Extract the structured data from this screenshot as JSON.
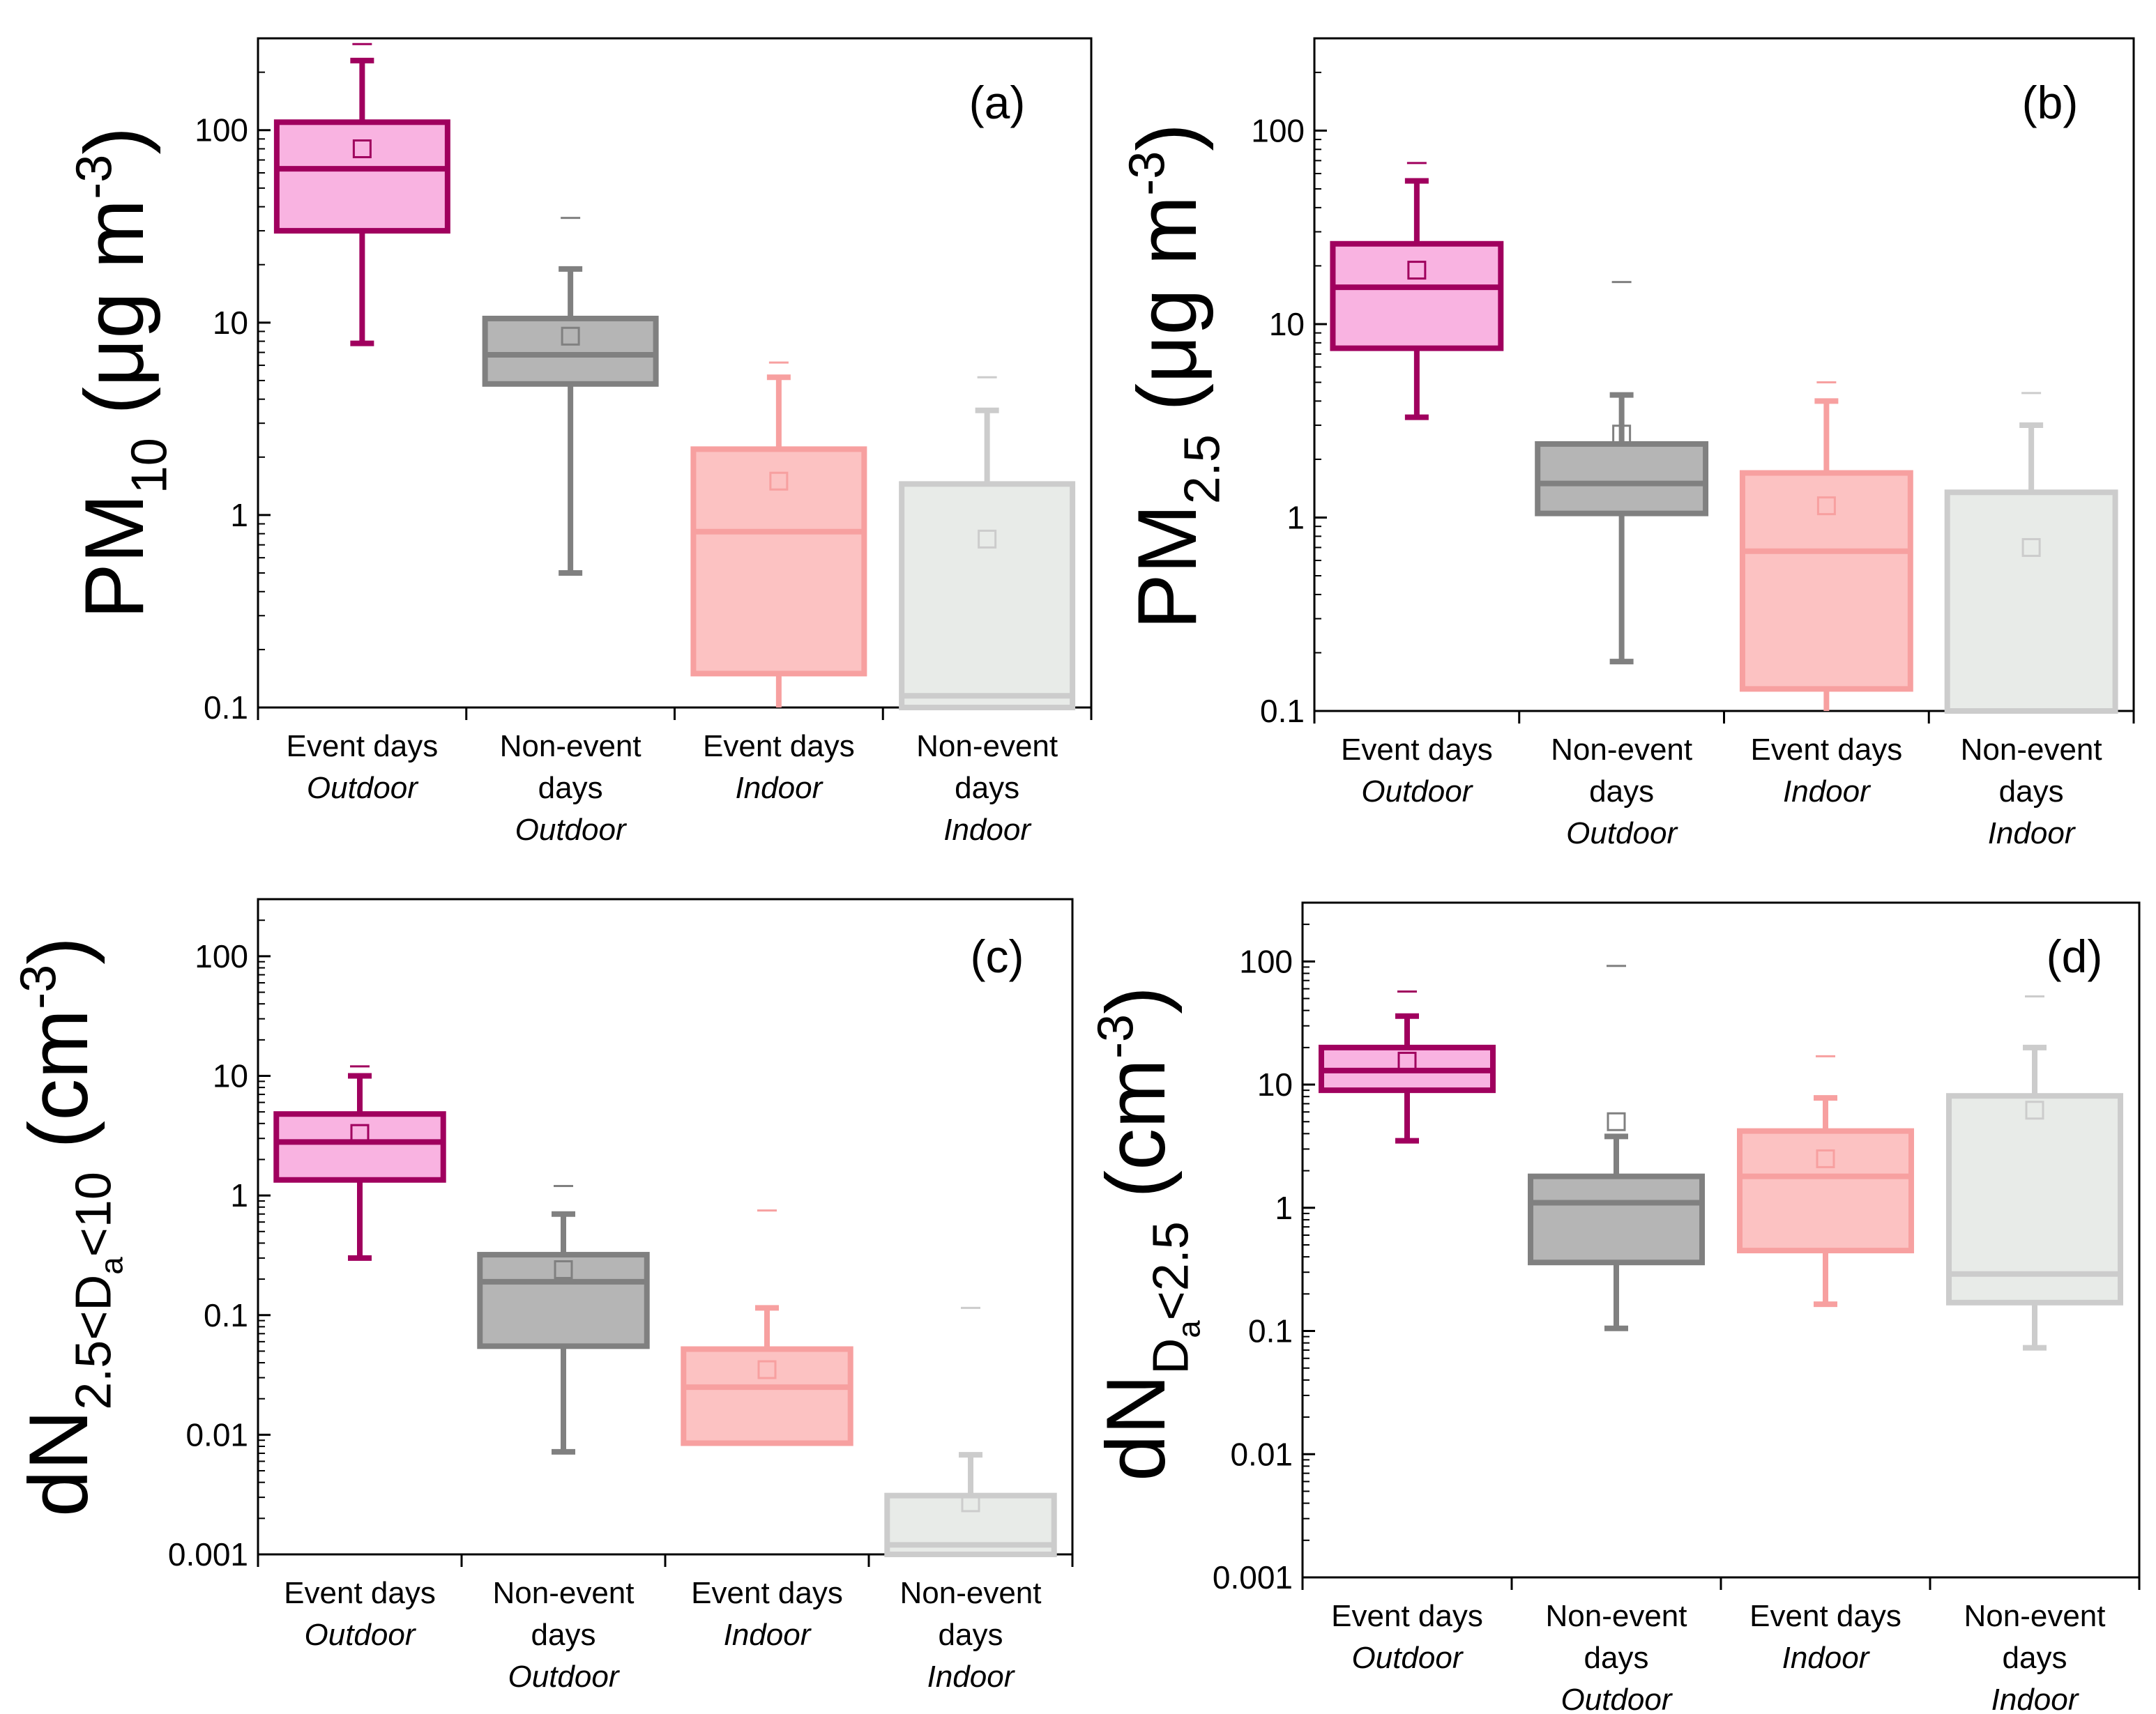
{
  "colors": {
    "event_outdoor": {
      "stroke": "#a0005e",
      "fill": "#f9b3e1"
    },
    "nonevent_outdoor": {
      "stroke": "#808080",
      "fill": "#b5b5b5"
    },
    "event_indoor": {
      "stroke": "#f7a0a0",
      "fill": "#fcc2c2"
    },
    "nonevent_indoor": {
      "stroke": "#cccccc",
      "fill": "#e8ebe8"
    }
  },
  "categories": [
    {
      "key": "event_outdoor",
      "line1": "Event days",
      "line2": "",
      "line3": "Outdoor"
    },
    {
      "key": "nonevent_outdoor",
      "line1": "Non-event",
      "line2": "days",
      "line3": "Outdoor"
    },
    {
      "key": "event_indoor",
      "line1": "Event days",
      "line2": "",
      "line3": "Indoor"
    },
    {
      "key": "nonevent_indoor",
      "line1": "Non-event",
      "line2": "days",
      "line3": "Indoor"
    }
  ],
  "chart_data": [
    {
      "type": "box",
      "panel_label": "(a)",
      "ylabel": {
        "main": "PM",
        "sub": "10",
        "units": "(μg m",
        "exp": "-3",
        "close": ")"
      },
      "yscale": "log",
      "ylim": [
        0.1,
        300
      ],
      "yticks": [
        0.1,
        1,
        10,
        100
      ],
      "ytick_labels": [
        "0.1",
        "1",
        "10",
        "100"
      ],
      "boxes": [
        {
          "category": "Event days Outdoor",
          "q1": 30,
          "median": 63,
          "q3": 110,
          "whisker_low": 7.8,
          "whisker_high": 230,
          "mean": 80,
          "max": 280
        },
        {
          "category": "Non-event days Outdoor",
          "q1": 4.8,
          "median": 6.8,
          "q3": 10.5,
          "whisker_low": 0.5,
          "whisker_high": 19,
          "mean": 8.5,
          "max": 35
        },
        {
          "category": "Event days Indoor",
          "q1": 0.15,
          "median": 0.82,
          "q3": 2.2,
          "whisker_low": 0.1,
          "whisker_high": 5.2,
          "mean": 1.5,
          "max": 6.2
        },
        {
          "category": "Non-event days Indoor",
          "q1": 0.1,
          "median": 0.115,
          "q3": 1.45,
          "whisker_low": 0.1,
          "whisker_high": 3.5,
          "mean": 0.75,
          "max": 5.2
        }
      ]
    },
    {
      "type": "box",
      "panel_label": "(b)",
      "ylabel": {
        "main": "PM",
        "sub": "2.5",
        "units": "(μg m",
        "exp": "-3",
        "close": ")"
      },
      "yscale": "log",
      "ylim": [
        0.1,
        300
      ],
      "yticks": [
        0.1,
        1,
        10,
        100
      ],
      "ytick_labels": [
        "0.1",
        "1",
        "10",
        "100"
      ],
      "boxes": [
        {
          "category": "Event days Outdoor",
          "q1": 7.5,
          "median": 15.5,
          "q3": 26,
          "whisker_low": 3.3,
          "whisker_high": 55,
          "mean": 19,
          "max": 68
        },
        {
          "category": "Non-event days Outdoor",
          "q1": 1.05,
          "median": 1.5,
          "q3": 2.4,
          "whisker_low": 0.18,
          "whisker_high": 4.3,
          "mean": 2.7,
          "max": 16.5
        },
        {
          "category": "Event days Indoor",
          "q1": 0.13,
          "median": 0.67,
          "q3": 1.7,
          "whisker_low": 0.1,
          "whisker_high": 4.0,
          "mean": 1.15,
          "max": 5.0
        },
        {
          "category": "Non-event days Indoor",
          "q1": 0.1,
          "median": 0.1,
          "q3": 1.35,
          "whisker_low": 0.1,
          "whisker_high": 3.0,
          "mean": 0.7,
          "max": 4.4
        }
      ]
    },
    {
      "type": "box",
      "panel_label": "(c)",
      "ylabel": {
        "main": "dN",
        "sub": "2.5<D",
        "subsub": "a",
        "sub2": "<10",
        "units": "(cm",
        "exp": "-3",
        "close": ")"
      },
      "yscale": "log",
      "ylim": [
        0.001,
        300
      ],
      "yticks": [
        0.001,
        0.01,
        0.1,
        1,
        10,
        100
      ],
      "ytick_labels": [
        "0.001",
        "0.01",
        "0.1",
        "1",
        "10",
        "100"
      ],
      "boxes": [
        {
          "category": "Event days Outdoor",
          "q1": 1.35,
          "median": 2.8,
          "q3": 4.8,
          "whisker_low": 0.3,
          "whisker_high": 10,
          "mean": 3.3,
          "max": 12
        },
        {
          "category": "Non-event days Outdoor",
          "q1": 0.055,
          "median": 0.19,
          "q3": 0.32,
          "whisker_low": 0.0072,
          "whisker_high": 0.7,
          "mean": 0.24,
          "max": 1.2
        },
        {
          "category": "Event days Indoor",
          "q1": 0.0085,
          "median": 0.025,
          "q3": 0.052,
          "whisker_low": 0.0085,
          "whisker_high": 0.115,
          "mean": 0.035,
          "max": 0.75
        },
        {
          "category": "Non-event days Indoor",
          "q1": 0.001,
          "median": 0.0012,
          "q3": 0.0031,
          "whisker_low": 0.001,
          "whisker_high": 0.0068,
          "mean": 0.0027,
          "max": 0.115
        }
      ]
    },
    {
      "type": "box",
      "panel_label": "(d)",
      "ylabel": {
        "main": "dN",
        "sub": "D",
        "subsub": "a",
        "sub2": "<2.5",
        "units": "(cm",
        "exp": "-3",
        "close": ")"
      },
      "yscale": "log",
      "ylim": [
        0.001,
        300
      ],
      "yticks": [
        0.001,
        0.01,
        0.1,
        1,
        10,
        100
      ],
      "ytick_labels": [
        "0.001",
        "0.01",
        "0.1",
        "1",
        "10",
        "100"
      ],
      "boxes": [
        {
          "category": "Event days Outdoor",
          "q1": 9,
          "median": 13,
          "q3": 20,
          "whisker_low": 3.5,
          "whisker_high": 36,
          "mean": 15.5,
          "max": 57
        },
        {
          "category": "Non-event days Outdoor",
          "q1": 0.36,
          "median": 1.1,
          "q3": 1.8,
          "whisker_low": 0.105,
          "whisker_high": 3.8,
          "mean": 5.0,
          "max": 92
        },
        {
          "category": "Event days Indoor",
          "q1": 0.45,
          "median": 1.8,
          "q3": 4.2,
          "whisker_low": 0.165,
          "whisker_high": 7.8,
          "mean": 2.5,
          "max": 17
        },
        {
          "category": "Non-event days Indoor",
          "q1": 0.17,
          "median": 0.29,
          "q3": 8.1,
          "whisker_low": 0.073,
          "whisker_high": 20,
          "mean": 6.2,
          "max": 52
        }
      ]
    }
  ]
}
